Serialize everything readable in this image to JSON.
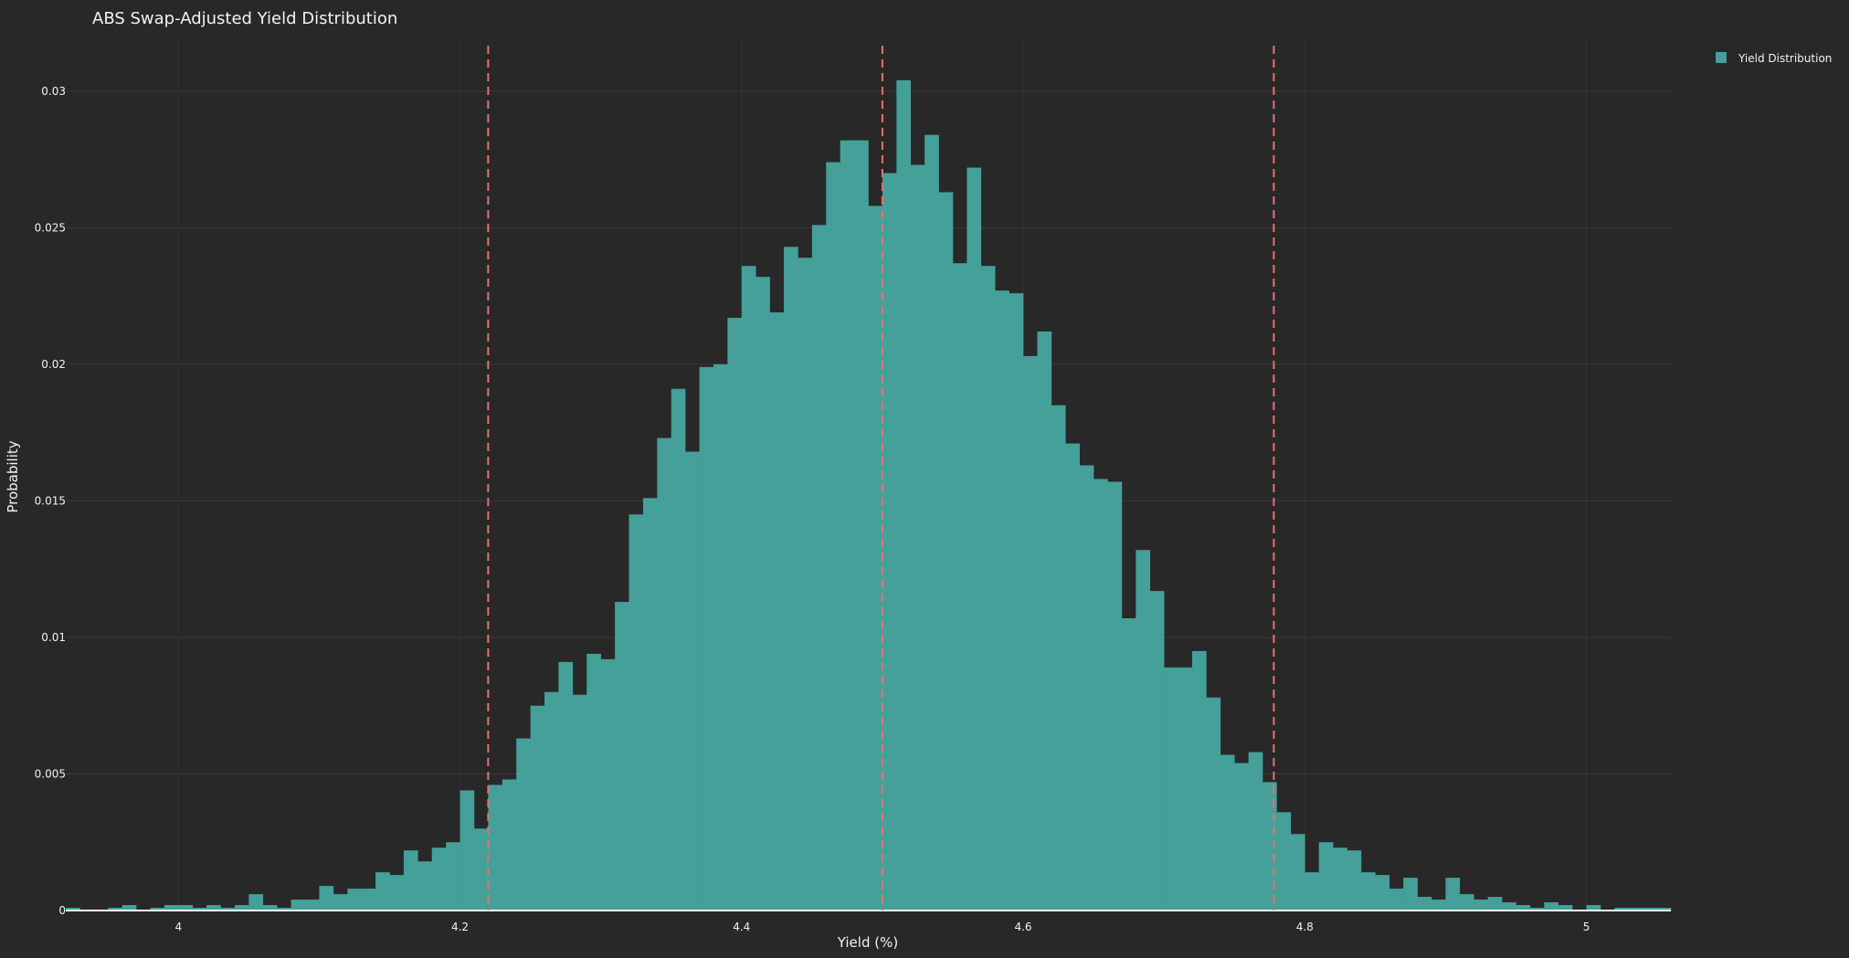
{
  "chart_data": {
    "type": "bar",
    "title": "ABS Swap-Adjusted Yield Distribution",
    "xlabel": "Yield (%)",
    "ylabel": "Probability",
    "xlim": [
      3.92,
      5.06
    ],
    "ylim": [
      0,
      0.032
    ],
    "bin_width": 0.01,
    "x_ticks": [
      4,
      4.2,
      4.4,
      4.6,
      4.8,
      5
    ],
    "x_tick_labels": [
      "4",
      "4.2",
      "4.4",
      "4.6",
      "4.8",
      "5"
    ],
    "y_ticks": [
      0,
      0.005,
      0.01,
      0.015,
      0.02,
      0.025,
      0.03
    ],
    "y_tick_labels": [
      "0",
      "0.005",
      "0.01",
      "0.015",
      "0.02",
      "0.025",
      "0.03"
    ],
    "grid": true,
    "legend_position": "top-right",
    "series": [
      {
        "name": "Yield Distribution",
        "color": "#44a098",
        "bin_starts": [
          3.92,
          3.93,
          3.94,
          3.95,
          3.96,
          3.97,
          3.98,
          3.99,
          4.0,
          4.01,
          4.02,
          4.03,
          4.04,
          4.05,
          4.06,
          4.07,
          4.08,
          4.09,
          4.1,
          4.11,
          4.12,
          4.13,
          4.14,
          4.15,
          4.16,
          4.17,
          4.18,
          4.19,
          4.2,
          4.21,
          4.22,
          4.23,
          4.24,
          4.25,
          4.26,
          4.27,
          4.28,
          4.29,
          4.3,
          4.31,
          4.32,
          4.33,
          4.34,
          4.35,
          4.36,
          4.37,
          4.38,
          4.39,
          4.4,
          4.41,
          4.42,
          4.43,
          4.44,
          4.45,
          4.46,
          4.47,
          4.48,
          4.49,
          4.5,
          4.51,
          4.52,
          4.53,
          4.54,
          4.55,
          4.56,
          4.57,
          4.58,
          4.59,
          4.6,
          4.61,
          4.62,
          4.63,
          4.64,
          4.65,
          4.66,
          4.67,
          4.68,
          4.69,
          4.7,
          4.71,
          4.72,
          4.73,
          4.74,
          4.75,
          4.76,
          4.77,
          4.78,
          4.79,
          4.8,
          4.81,
          4.82,
          4.83,
          4.84,
          4.85,
          4.86,
          4.87,
          4.88,
          4.89,
          4.9,
          4.91,
          4.92,
          4.93,
          4.94,
          4.95,
          4.96,
          4.97,
          4.98,
          4.99,
          5.0,
          5.01,
          5.02,
          5.03,
          5.04,
          5.05
        ],
        "values": [
          0.0001,
          0.0,
          0.0,
          0.0001,
          0.0002,
          0.0,
          0.0001,
          0.0002,
          0.0002,
          0.0001,
          0.0002,
          0.0001,
          0.0002,
          0.0006,
          0.0002,
          0.0001,
          0.0004,
          0.0004,
          0.0009,
          0.0006,
          0.0008,
          0.0008,
          0.0014,
          0.0013,
          0.0022,
          0.0018,
          0.0023,
          0.0025,
          0.0044,
          0.003,
          0.0046,
          0.0048,
          0.0063,
          0.0075,
          0.008,
          0.0091,
          0.0079,
          0.0094,
          0.0092,
          0.0113,
          0.0145,
          0.0151,
          0.0173,
          0.0191,
          0.0168,
          0.0199,
          0.02,
          0.0217,
          0.0236,
          0.0232,
          0.0219,
          0.0243,
          0.0239,
          0.0251,
          0.0274,
          0.0282,
          0.0282,
          0.0258,
          0.027,
          0.0304,
          0.0273,
          0.0284,
          0.0263,
          0.0237,
          0.0272,
          0.0236,
          0.0227,
          0.0226,
          0.0203,
          0.0212,
          0.0185,
          0.0171,
          0.0163,
          0.0158,
          0.0157,
          0.0107,
          0.0132,
          0.0117,
          0.0089,
          0.0089,
          0.0095,
          0.0078,
          0.0057,
          0.0054,
          0.0058,
          0.0047,
          0.0036,
          0.0028,
          0.0014,
          0.0025,
          0.0023,
          0.0022,
          0.0014,
          0.0013,
          0.0008,
          0.0012,
          0.0005,
          0.0004,
          0.0012,
          0.0006,
          0.0004,
          0.0005,
          0.0003,
          0.0002,
          0.0001,
          0.0003,
          0.0002,
          0.0,
          0.0002,
          0.0,
          0.0001,
          0.0001,
          0.0001,
          0.0001
        ]
      }
    ],
    "reference_lines": [
      {
        "x": 4.22,
        "color": "#e8716f"
      },
      {
        "x": 4.5,
        "color": "#e8716f"
      },
      {
        "x": 4.778,
        "color": "#e8716f"
      }
    ]
  }
}
